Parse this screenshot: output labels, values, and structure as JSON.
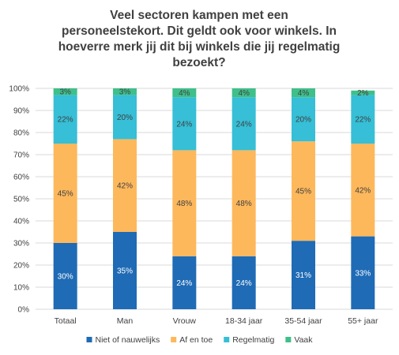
{
  "chart_data": {
    "type": "bar",
    "stacked": true,
    "title_lines": [
      "Veel sectoren kampen met een",
      "personeelstekort. Dit geldt ook voor winkels. In",
      "hoeverre merk jij dit bij winkels die jij regelmatig",
      "bezoekt?"
    ],
    "categories": [
      "Totaal",
      "Man",
      "Vrouw",
      "18-34 jaar",
      "35-54 jaar",
      "55+ jaar"
    ],
    "series": [
      {
        "name": "Niet of nauwelijks",
        "values": [
          30,
          35,
          24,
          24,
          31,
          33
        ],
        "labels": [
          "30%",
          "35%",
          "24%",
          "24%",
          "31%",
          "33%"
        ],
        "color": "#1f6bb5",
        "label_color": "#ffffff"
      },
      {
        "name": "Af en toe",
        "values": [
          45,
          42,
          48,
          48,
          45,
          42
        ],
        "labels": [
          "45%",
          "42%",
          "48%",
          "48%",
          "45%",
          "42%"
        ],
        "color": "#fdb85c",
        "label_color": "#404040"
      },
      {
        "name": "Regelmatig",
        "values": [
          22,
          20,
          24,
          24,
          20,
          22
        ],
        "labels": [
          "22%",
          "20%",
          "24%",
          "24%",
          "20%",
          "22%"
        ],
        "color": "#36bfd6",
        "label_color": "#404040"
      },
      {
        "name": "Vaak",
        "values": [
          3,
          3,
          4,
          4,
          4,
          2
        ],
        "labels": [
          "3%",
          "3%",
          "4%",
          "4%",
          "4%",
          "2%"
        ],
        "color": "#3fbf8a",
        "label_color": "#404040"
      }
    ],
    "y_ticks": [
      "0%",
      "10%",
      "20%",
      "30%",
      "40%",
      "50%",
      "60%",
      "70%",
      "80%",
      "90%",
      "100%"
    ],
    "ylim": [
      0,
      100
    ],
    "grid": true,
    "legend_position": "bottom"
  }
}
